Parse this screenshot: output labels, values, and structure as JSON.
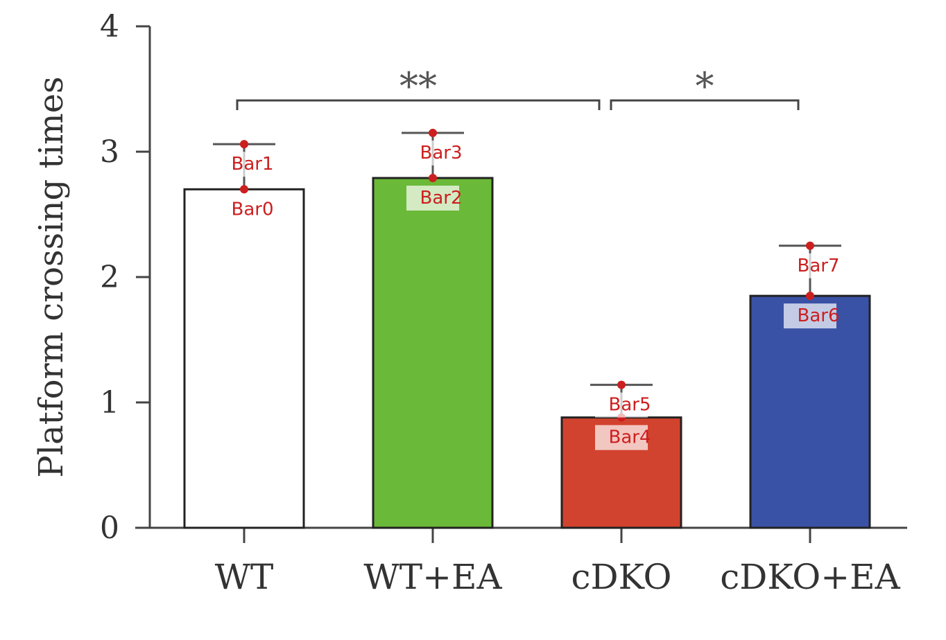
{
  "chart_data": {
    "type": "bar",
    "categories": [
      "WT",
      "WT+EA",
      "cDKO",
      "cDKO+EA"
    ],
    "values": [
      2.7,
      2.79,
      0.88,
      1.85
    ],
    "errors_upper": [
      3.06,
      3.15,
      1.14,
      2.25
    ],
    "colors": [
      "#ffffff",
      "#6bb938",
      "#d2432f",
      "#3a52a5"
    ],
    "ylabel": "Platform crossing times",
    "xlabel": "",
    "ylim": [
      0,
      4
    ],
    "yticks": [
      "0",
      "1",
      "2",
      "3",
      "4"
    ],
    "grid": false,
    "significance": [
      {
        "from": 0,
        "to": 2,
        "label": "**"
      },
      {
        "from": 2,
        "to": 3,
        "label": "*"
      }
    ],
    "annotations": [
      {
        "label": "Bar0",
        "bar": 0,
        "kind": "value"
      },
      {
        "label": "Bar1",
        "bar": 0,
        "kind": "error"
      },
      {
        "label": "Bar2",
        "bar": 1,
        "kind": "value"
      },
      {
        "label": "Bar3",
        "bar": 1,
        "kind": "error"
      },
      {
        "label": "Bar4",
        "bar": 2,
        "kind": "value"
      },
      {
        "label": "Bar5",
        "bar": 2,
        "kind": "error"
      },
      {
        "label": "Bar6",
        "bar": 3,
        "kind": "value"
      },
      {
        "label": "Bar7",
        "bar": 3,
        "kind": "error"
      }
    ]
  }
}
